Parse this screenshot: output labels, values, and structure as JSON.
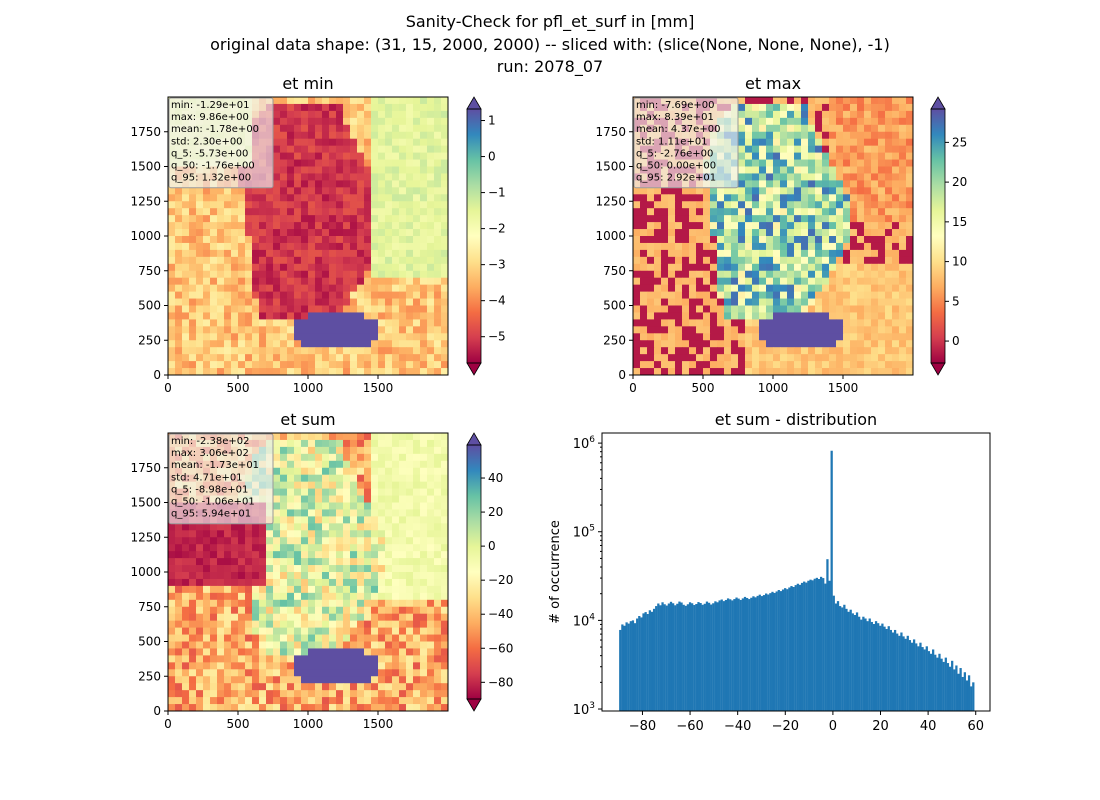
{
  "suptitle": {
    "line1": "Sanity-Check for pfl_et_surf in [mm]",
    "line2": "original data shape: (31, 15, 2000, 2000) -- sliced with: (slice(None, None, None), -1)",
    "line3": "run: 2078_07"
  },
  "colors": {
    "cmap": [
      "#9e0142",
      "#d53e4f",
      "#f46d43",
      "#fdae61",
      "#fee08b",
      "#ffffbf",
      "#e6f598",
      "#abdda4",
      "#66c2a5",
      "#3288bd",
      "#5e4fa2"
    ],
    "hist_bar": "#1f77b4",
    "stats_box_bg": "#f0f0f0",
    "stats_box_edge": "#999999"
  },
  "chart_data": [
    {
      "type": "heatmap",
      "title": "et min",
      "x_ticks": [
        "0",
        "500",
        "1000",
        "1500"
      ],
      "y_ticks": [
        "0",
        "250",
        "500",
        "750",
        "1000",
        "1250",
        "1500",
        "1750"
      ],
      "xlim": [
        0,
        2000
      ],
      "ylim": [
        0,
        2000
      ],
      "colormap": "Spectral",
      "colorbar": {
        "ticks": [
          "1",
          "0",
          "−1",
          "−2",
          "−3",
          "−4",
          "−5"
        ],
        "tick_values": [
          1,
          0,
          -1,
          -2,
          -3,
          -4,
          -5
        ],
        "vmin": -5.73,
        "vmax": 1.32,
        "extend": "both"
      },
      "stats": [
        "min: -1.29e+01",
        "max: 9.86e+00",
        "mean: -1.78e+00",
        "std: 2.30e+00",
        "q_5: -5.73e+00",
        "q_50: -1.76e+00",
        "q_95: 1.32e+00"
      ]
    },
    {
      "type": "heatmap",
      "title": "et max",
      "x_ticks": [
        "0",
        "500",
        "1000",
        "1500"
      ],
      "y_ticks": [
        "0",
        "250",
        "500",
        "750",
        "1000",
        "1250",
        "1500",
        "1750"
      ],
      "xlim": [
        0,
        2000
      ],
      "ylim": [
        0,
        2000
      ],
      "colormap": "Spectral",
      "colorbar": {
        "ticks": [
          "25",
          "20",
          "15",
          "10",
          "5",
          "0"
        ],
        "tick_values": [
          25,
          20,
          15,
          10,
          5,
          0
        ],
        "vmin": -2.76,
        "vmax": 29.2,
        "extend": "both"
      },
      "stats": [
        "min: -7.69e+00",
        "max: 8.39e+01",
        "mean: 4.37e+00",
        "std: 1.11e+01",
        "q_5: -2.76e+00",
        "q_50: 0.00e+00",
        "q_95: 2.92e+01"
      ]
    },
    {
      "type": "heatmap",
      "title": "et sum",
      "x_ticks": [
        "0",
        "500",
        "1000",
        "1500"
      ],
      "y_ticks": [
        "0",
        "250",
        "500",
        "750",
        "1000",
        "1250",
        "1500",
        "1750"
      ],
      "xlim": [
        0,
        2000
      ],
      "ylim": [
        0,
        2000
      ],
      "colormap": "Spectral",
      "colorbar": {
        "ticks": [
          "40",
          "20",
          "0",
          "−20",
          "−40",
          "−60",
          "−80"
        ],
        "tick_values": [
          40,
          20,
          0,
          -20,
          -40,
          -60,
          -80
        ],
        "vmin": -89.8,
        "vmax": 59.4,
        "extend": "both"
      },
      "stats": [
        "min: -2.38e+02",
        "max: 3.06e+02",
        "mean: -1.73e+01",
        "std: 4.71e+01",
        "q_5: -8.98e+01",
        "q_50: -1.06e+01",
        "q_95: 5.94e+01"
      ]
    },
    {
      "type": "bar",
      "title": "et sum - distribution",
      "xlabel": "",
      "ylabel": "# of occurrence",
      "y_scale": "log",
      "x_ticks": [
        "−80",
        "−60",
        "−40",
        "−20",
        "0",
        "20",
        "40",
        "60"
      ],
      "x_tick_values": [
        -80,
        -60,
        -40,
        -20,
        0,
        20,
        40,
        60
      ],
      "y_ticks": [
        {
          "base": "10",
          "exp": "3",
          "value": 1000
        },
        {
          "base": "10",
          "exp": "4",
          "value": 10000
        },
        {
          "base": "10",
          "exp": "5",
          "value": 100000
        },
        {
          "base": "10",
          "exp": "6",
          "value": 1000000
        }
      ],
      "xlim": [
        -97,
        66
      ],
      "ylim": [
        950,
        1300000
      ],
      "bin_range": [
        -89.8,
        59.4
      ],
      "counts": [
        7800,
        9000,
        8700,
        9500,
        9200,
        9800,
        10000,
        9300,
        10500,
        11200,
        10800,
        12000,
        12400,
        11800,
        13000,
        12500,
        13500,
        14500,
        15500,
        14800,
        16000,
        15200,
        14700,
        15500,
        16200,
        15600,
        14800,
        15400,
        16300,
        15900,
        15000,
        14600,
        15200,
        16000,
        15600,
        14900,
        15300,
        16100,
        15700,
        15000,
        15400,
        16300,
        15800,
        15100,
        15600,
        16400,
        16000,
        16800,
        17200,
        16500,
        17000,
        17700,
        17300,
        16800,
        17400,
        18100,
        17600,
        17000,
        17700,
        18400,
        17900,
        17400,
        18000,
        18700,
        18200,
        18900,
        19500,
        18800,
        19300,
        20100,
        19600,
        20300,
        21000,
        20400,
        21200,
        22000,
        21400,
        22300,
        23100,
        22500,
        23500,
        24400,
        23800,
        25000,
        25900,
        25200,
        26500,
        27400,
        26700,
        28000,
        28800,
        28300,
        29500,
        30200,
        29300,
        31000,
        30000,
        26000,
        49000,
        28000,
        820000,
        19000,
        15500,
        16500,
        14500,
        14000,
        15000,
        13500,
        12500,
        13200,
        12000,
        11500,
        12300,
        11000,
        10200,
        11000,
        10500,
        9800,
        10500,
        9600,
        9100,
        9800,
        9300,
        8700,
        9200,
        8500,
        8000,
        8600,
        7800,
        7300,
        7800,
        7100,
        6700,
        7300,
        6600,
        6200,
        6700,
        6000,
        5600,
        6100,
        5500,
        5100,
        5600,
        5000,
        4700,
        5100,
        4500,
        4200,
        4700,
        4100,
        3800,
        4200,
        3700,
        3400,
        3800,
        3300,
        3000,
        3500,
        2800,
        3100,
        2500,
        2900,
        2300,
        2600,
        2100,
        2400,
        1800,
        2000
      ]
    }
  ]
}
